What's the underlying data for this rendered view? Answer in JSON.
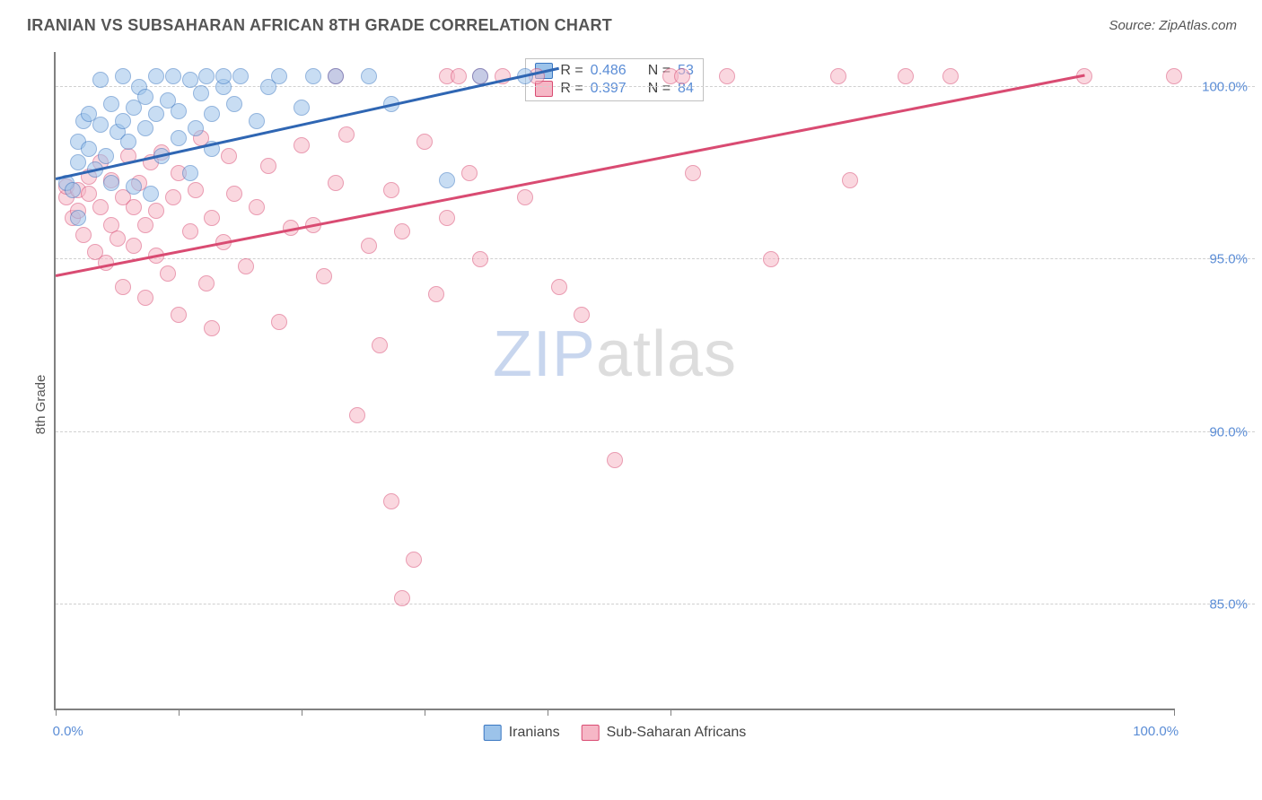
{
  "header": {
    "title": "IRANIAN VS SUBSAHARAN AFRICAN 8TH GRADE CORRELATION CHART",
    "source": "Source: ZipAtlas.com"
  },
  "chart": {
    "type": "scatter",
    "ylabel": "8th Grade",
    "watermark_zip": "ZIP",
    "watermark_atlas": "atlas",
    "background_color": "#ffffff",
    "grid_color": "#d0d0d0",
    "axis_color": "#808080",
    "tick_label_color": "#5b8dd6",
    "xlim": [
      0,
      100
    ],
    "ylim": [
      82,
      101
    ],
    "xtick_positions": [
      0,
      11,
      22,
      33,
      44,
      55,
      100
    ],
    "xtick_labels": {
      "0": "0.0%",
      "100": "100.0%"
    },
    "ygrid_positions": [
      85,
      90,
      95,
      100
    ],
    "ytick_labels": {
      "85": "85.0%",
      "90": "90.0%",
      "95": "95.0%",
      "100": "100.0%"
    },
    "series": [
      {
        "name": "Iranians",
        "fill_color": "#9cc3ea",
        "stroke_color": "#3a77c2",
        "trend_color": "#2f66b3",
        "trend": {
          "x1": 0,
          "y1": 97.3,
          "x2": 45,
          "y2": 100.5
        },
        "R": "0.486",
        "N": "53",
        "points": [
          [
            1,
            97.2
          ],
          [
            1.5,
            97.0
          ],
          [
            2,
            97.8
          ],
          [
            2,
            98.4
          ],
          [
            2.5,
            99.0
          ],
          [
            2,
            96.2
          ],
          [
            3,
            98.2
          ],
          [
            3,
            99.2
          ],
          [
            3.5,
            97.6
          ],
          [
            4,
            98.9
          ],
          [
            4,
            100.2
          ],
          [
            4.5,
            98.0
          ],
          [
            5,
            99.5
          ],
          [
            5,
            97.2
          ],
          [
            5.5,
            98.7
          ],
          [
            6,
            99.0
          ],
          [
            6,
            100.3
          ],
          [
            6.5,
            98.4
          ],
          [
            7,
            99.4
          ],
          [
            7,
            97.1
          ],
          [
            7.5,
            100.0
          ],
          [
            8,
            98.8
          ],
          [
            8,
            99.7
          ],
          [
            8.5,
            96.9
          ],
          [
            9,
            99.2
          ],
          [
            9,
            100.3
          ],
          [
            9.5,
            98.0
          ],
          [
            10,
            99.6
          ],
          [
            10.5,
            100.3
          ],
          [
            11,
            98.5
          ],
          [
            11,
            99.3
          ],
          [
            12,
            97.5
          ],
          [
            12,
            100.2
          ],
          [
            12.5,
            98.8
          ],
          [
            13,
            99.8
          ],
          [
            13.5,
            100.3
          ],
          [
            14,
            98.2
          ],
          [
            14,
            99.2
          ],
          [
            15,
            100.0
          ],
          [
            15,
            100.3
          ],
          [
            16,
            99.5
          ],
          [
            16.5,
            100.3
          ],
          [
            18,
            99.0
          ],
          [
            19,
            100.0
          ],
          [
            20,
            100.3
          ],
          [
            22,
            99.4
          ],
          [
            23,
            100.3
          ],
          [
            25,
            100.3
          ],
          [
            28,
            100.3
          ],
          [
            30,
            99.5
          ],
          [
            35,
            97.3
          ],
          [
            38,
            100.3
          ],
          [
            42,
            100.3
          ]
        ]
      },
      {
        "name": "Sub-Saharan Africans",
        "fill_color": "#f6b7c6",
        "stroke_color": "#d94b72",
        "trend_color": "#d94b72",
        "trend": {
          "x1": 0,
          "y1": 94.5,
          "x2": 92,
          "y2": 100.3
        },
        "R": "0.397",
        "N": "84",
        "points": [
          [
            1,
            96.8
          ],
          [
            1,
            97.1
          ],
          [
            1.5,
            96.2
          ],
          [
            2,
            97.0
          ],
          [
            2,
            96.4
          ],
          [
            2.5,
            95.7
          ],
          [
            3,
            96.9
          ],
          [
            3,
            97.4
          ],
          [
            3.5,
            95.2
          ],
          [
            4,
            96.5
          ],
          [
            4,
            97.8
          ],
          [
            4.5,
            94.9
          ],
          [
            5,
            96.0
          ],
          [
            5,
            97.3
          ],
          [
            5.5,
            95.6
          ],
          [
            6,
            96.8
          ],
          [
            6,
            94.2
          ],
          [
            6.5,
            98.0
          ],
          [
            7,
            95.4
          ],
          [
            7,
            96.5
          ],
          [
            7.5,
            97.2
          ],
          [
            8,
            93.9
          ],
          [
            8,
            96.0
          ],
          [
            8.5,
            97.8
          ],
          [
            9,
            95.1
          ],
          [
            9,
            96.4
          ],
          [
            9.5,
            98.1
          ],
          [
            10,
            94.6
          ],
          [
            10.5,
            96.8
          ],
          [
            11,
            97.5
          ],
          [
            11,
            93.4
          ],
          [
            12,
            95.8
          ],
          [
            12.5,
            97.0
          ],
          [
            13,
            98.5
          ],
          [
            13.5,
            94.3
          ],
          [
            14,
            96.2
          ],
          [
            14,
            93.0
          ],
          [
            15,
            95.5
          ],
          [
            15.5,
            98.0
          ],
          [
            16,
            96.9
          ],
          [
            17,
            94.8
          ],
          [
            18,
            96.5
          ],
          [
            19,
            97.7
          ],
          [
            20,
            93.2
          ],
          [
            21,
            95.9
          ],
          [
            22,
            98.3
          ],
          [
            23,
            96.0
          ],
          [
            24,
            94.5
          ],
          [
            25,
            97.2
          ],
          [
            25,
            100.3
          ],
          [
            26,
            98.6
          ],
          [
            27,
            90.5
          ],
          [
            28,
            95.4
          ],
          [
            29,
            92.5
          ],
          [
            30,
            88.0
          ],
          [
            30,
            97.0
          ],
          [
            31,
            95.8
          ],
          [
            31,
            85.2
          ],
          [
            32,
            86.3
          ],
          [
            33,
            98.4
          ],
          [
            34,
            94.0
          ],
          [
            35,
            96.2
          ],
          [
            35,
            100.3
          ],
          [
            36,
            100.3
          ],
          [
            37,
            97.5
          ],
          [
            38,
            95.0
          ],
          [
            38,
            100.3
          ],
          [
            40,
            100.3
          ],
          [
            42,
            96.8
          ],
          [
            43,
            100.3
          ],
          [
            45,
            94.2
          ],
          [
            47,
            93.4
          ],
          [
            50,
            89.2
          ],
          [
            55,
            100.3
          ],
          [
            56,
            100.3
          ],
          [
            57,
            97.5
          ],
          [
            60,
            100.3
          ],
          [
            64,
            95.0
          ],
          [
            70,
            100.3
          ],
          [
            71,
            97.3
          ],
          [
            76,
            100.3
          ],
          [
            80,
            100.3
          ],
          [
            92,
            100.3
          ],
          [
            100,
            100.3
          ]
        ]
      }
    ],
    "legend_top": {
      "r_label": "R =",
      "n_label": "N ="
    },
    "legend_bottom": [
      {
        "label": "Iranians",
        "fill": "#9cc3ea",
        "stroke": "#3a77c2"
      },
      {
        "label": "Sub-Saharan Africans",
        "fill": "#f6b7c6",
        "stroke": "#d94b72"
      }
    ]
  }
}
